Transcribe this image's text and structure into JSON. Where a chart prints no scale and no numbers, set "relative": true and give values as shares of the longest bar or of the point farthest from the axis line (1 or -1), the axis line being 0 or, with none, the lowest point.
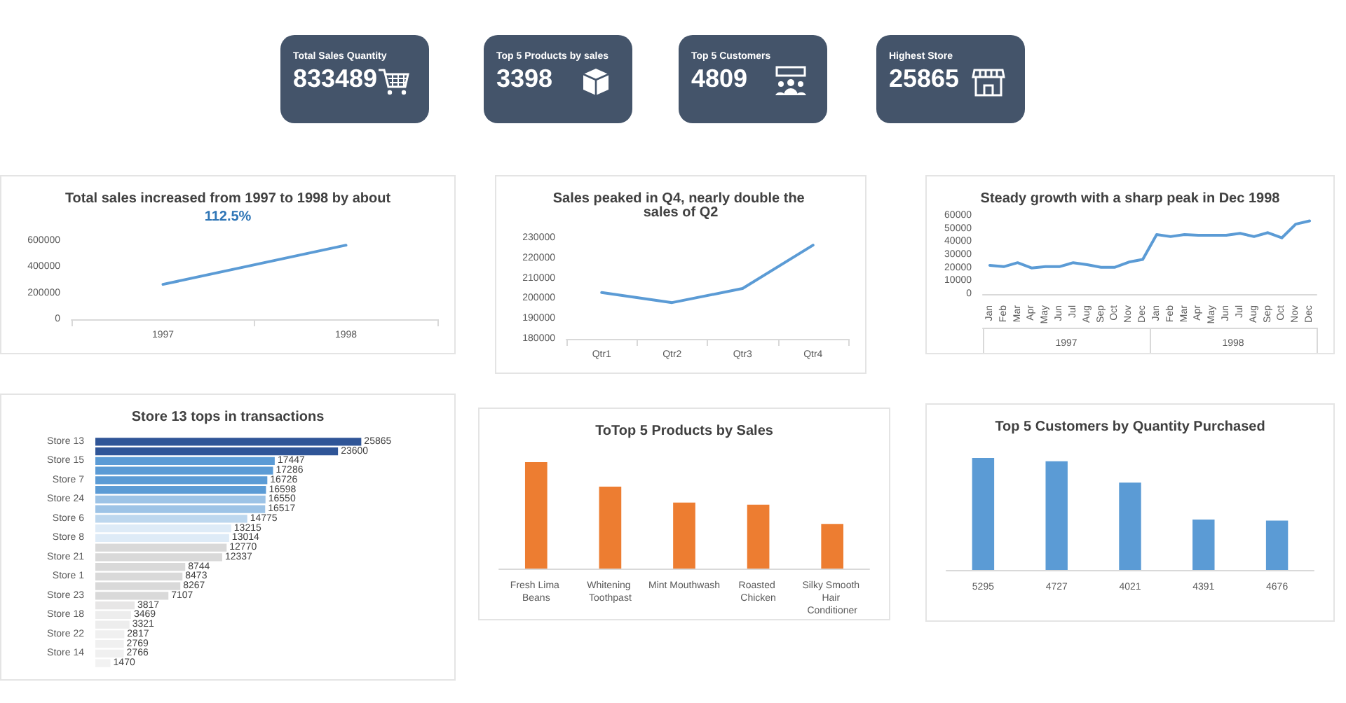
{
  "chart_data": [
    {
      "type": "other",
      "title": "Total Sales Quantity",
      "annotations": [
        "833489"
      ]
    },
    {
      "type": "other",
      "title": "Top 5 Products by sales",
      "annotations": [
        "3398"
      ]
    },
    {
      "type": "other",
      "title": "Top 5 Customers",
      "annotations": [
        "4809"
      ]
    },
    {
      "type": "other",
      "title": "Highest Store",
      "annotations": [
        "25865"
      ]
    },
    {
      "type": "line",
      "title": "Total sales increased from 1997 to 1998 by about",
      "subtitle": "112.5%",
      "categories": [
        "1997",
        "1998"
      ],
      "values": [
        267000,
        567000
      ],
      "color": "#5b9bd5",
      "ylim": [
        0,
        600000
      ],
      "yticks": [
        0,
        200000,
        400000,
        600000
      ],
      "marker": "none"
    },
    {
      "type": "line",
      "title": "Sales peaked in Q4, nearly double the sales of Q2",
      "categories": [
        "Qtr1",
        "Qtr2",
        "Qtr3",
        "Qtr4"
      ],
      "values": [
        203000,
        198000,
        205000,
        226500
      ],
      "color": "#5b9bd5",
      "ylim": [
        180000,
        230000
      ],
      "yticks": [
        180000,
        190000,
        200000,
        210000,
        220000,
        230000
      ],
      "marker": "none"
    },
    {
      "type": "line",
      "title": "Steady growth with a sharp peak in Dec 1998",
      "categories": [
        "Jan",
        "Feb",
        "Mar",
        "Apr",
        "May",
        "Jun",
        "Jul",
        "Aug",
        "Sep",
        "Oct",
        "Nov",
        "Dec",
        "Jan",
        "Feb",
        "Mar",
        "Apr",
        "May",
        "Jun",
        "Jul",
        "Aug",
        "Sep",
        "Oct",
        "Nov",
        "Dec"
      ],
      "values": [
        22000,
        21000,
        24000,
        20000,
        21000,
        21000,
        24000,
        22500,
        20500,
        20500,
        24500,
        26500,
        45500,
        44000,
        45500,
        45000,
        45000,
        45000,
        46500,
        44000,
        47000,
        43000,
        53500,
        56000
      ],
      "color": "#5b9bd5",
      "ylim": [
        0,
        60000
      ],
      "yticks": [
        0,
        10000,
        20000,
        30000,
        40000,
        50000,
        60000
      ],
      "marker": "none",
      "annotations": [
        "1997",
        "1998"
      ]
    },
    {
      "type": "bar",
      "orientation": "horizontal",
      "title": "Store 13 tops in transactions",
      "categories": [
        "Store 13",
        null,
        "Store 15",
        null,
        "Store 7",
        null,
        "Store 24",
        null,
        "Store 6",
        null,
        "Store 8",
        null,
        "Store 21",
        null,
        "Store 1",
        null,
        "Store 23",
        null,
        "Store 18",
        null,
        "Store 22",
        null,
        "Store 14",
        null
      ],
      "values": [
        25865,
        23600,
        17447,
        17286,
        16726,
        16598,
        16550,
        16517,
        14775,
        13215,
        13014,
        12770,
        12337,
        8744,
        8473,
        8267,
        7107,
        3817,
        3469,
        3321,
        2817,
        2769,
        2766,
        1470
      ],
      "colors": [
        "#2f5597",
        "#2f5597",
        "#5b9bd5",
        "#5b9bd5",
        "#5b9bd5",
        "#5b9bd5",
        "#9dc3e6",
        "#9dc3e6",
        "#bdd7ee",
        "#deebf7",
        "#deebf7",
        "#d9d9d9",
        "#d9d9d9",
        "#d9d9d9",
        "#d9d9d9",
        "#d9d9d9",
        "#d9d9d9",
        "#e7e6e6",
        "#ededed",
        "#ededed",
        "#f0f0f0",
        "#f0f0f0",
        "#f0f0f0",
        "#f2f2f2"
      ],
      "data_labels": true
    },
    {
      "type": "bar",
      "title": "ToTop 5 Products by Sales",
      "categories": [
        "Fresh Lima Beans",
        "Whitening Toothpast",
        "Mint Mouthwash",
        "Roasted Chicken",
        "Silky Smooth Hair Conditioner"
      ],
      "values": [
        1,
        0.77,
        0.62,
        0.6,
        0.42
      ],
      "color": "#ed7d31",
      "relative": true
    },
    {
      "type": "bar",
      "title": "Top 5 Customers by Quantity Purchased",
      "categories": [
        "5295",
        "4727",
        "4021",
        "4391",
        "4676"
      ],
      "values": [
        1,
        0.97,
        0.78,
        0.45,
        0.44
      ],
      "color": "#5b9bd5",
      "relative": true
    }
  ]
}
